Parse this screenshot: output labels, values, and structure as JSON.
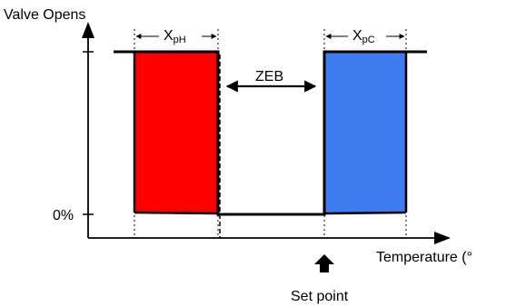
{
  "labels": {
    "y_axis": "Valve Opens",
    "x_axis": "Temperature (°",
    "zero_tick": "0%",
    "zeb": "ZEB",
    "setpoint": "Set point",
    "xph_main": "X",
    "xph_sub": "pH",
    "xpc_main": "X",
    "xpc_sub": "pC"
  },
  "colors": {
    "heating": "#ff0000",
    "cooling": "#3e7cf2",
    "line": "#000000"
  }
}
